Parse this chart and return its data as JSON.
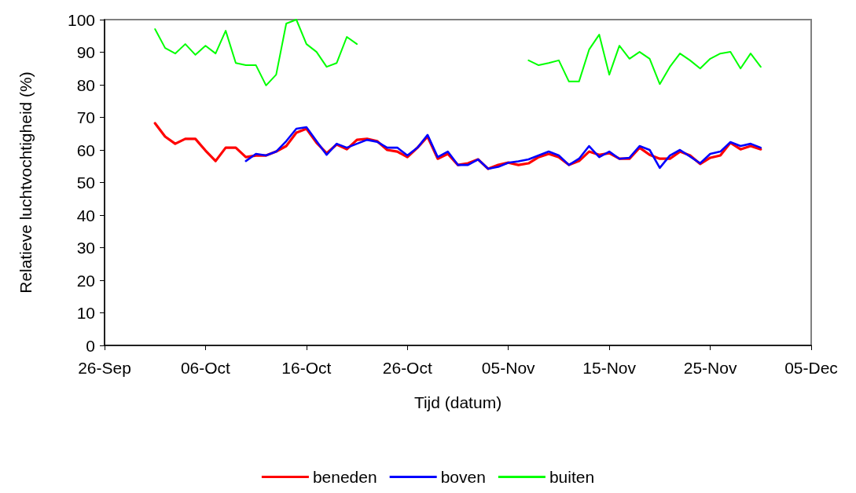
{
  "chart_data": {
    "type": "line",
    "xlabel": "Tijd (datum)",
    "ylabel": "Relatieve luchtvochtigheid (%)",
    "x": [
      "--10-01",
      "--10-02",
      "--10-03",
      "--10-04",
      "--10-05",
      "--10-06",
      "--10-07",
      "--10-08",
      "--10-09",
      "--10-10",
      "--10-11",
      "--10-12",
      "--10-13",
      "--10-14",
      "--10-15",
      "--10-16",
      "--10-17",
      "--10-18",
      "--10-19",
      "--10-20",
      "--10-21",
      "--10-22",
      "--10-23",
      "--10-24",
      "--10-25",
      "--10-26",
      "--10-27",
      "--10-28",
      "--10-29",
      "--10-30",
      "--10-31",
      "--11-01",
      "--11-02",
      "--11-03",
      "--11-04",
      "--11-05",
      "--11-06",
      "--11-07",
      "--11-08",
      "--11-09",
      "--11-10",
      "--11-11",
      "--11-12",
      "--11-13",
      "--11-14",
      "--11-15",
      "--11-16",
      "--11-17",
      "--11-18",
      "--11-19",
      "--11-20",
      "--11-21",
      "--11-22",
      "--11-23",
      "--11-24",
      "--11-25",
      "--11-26",
      "--11-27",
      "--11-28",
      "--11-29",
      "--11-30"
    ],
    "series": [
      {
        "name": "beneden",
        "color": "#ff0000",
        "values": [
          68.2,
          64.1,
          61.9,
          63.4,
          63.4,
          59.8,
          56.6,
          60.7,
          60.7,
          57.8,
          58.3,
          58.3,
          59.5,
          61.2,
          65.3,
          66.5,
          62.2,
          59,
          61.7,
          60.2,
          63.1,
          63.4,
          62.7,
          60,
          59.5,
          57.8,
          60.7,
          64.1,
          57.3,
          58.8,
          55.4,
          55.9,
          57.1,
          54.2,
          55.4,
          56.1,
          55.4,
          55.9,
          57.8,
          58.8,
          57.8,
          55.4,
          56.6,
          59.5,
          58.5,
          59,
          57.3,
          57.3,
          60.7,
          58.5,
          57.3,
          57.3,
          59.5,
          58.3,
          55.7,
          57.6,
          58.3,
          62.2,
          60.2,
          61.2,
          60.2
        ]
      },
      {
        "name": "boven",
        "color": "#0000ff",
        "values": [
          null,
          null,
          null,
          null,
          null,
          null,
          null,
          null,
          null,
          56.6,
          58.8,
          58.3,
          59.5,
          62.7,
          66.5,
          67,
          62.7,
          58.5,
          61.9,
          60.7,
          61.9,
          63.1,
          62.5,
          60.7,
          60.7,
          58.3,
          60.7,
          64.6,
          57.8,
          59.5,
          55.4,
          55.4,
          57.1,
          54.2,
          54.8,
          56.1,
          56.5,
          57.1,
          58.3,
          59.5,
          58.3,
          55.4,
          57.3,
          61.2,
          57.8,
          59.5,
          57.3,
          57.6,
          61.2,
          60,
          54.5,
          58.3,
          60,
          58,
          55.9,
          58.8,
          59.5,
          62.4,
          61.2,
          61.9,
          60.7
        ]
      },
      {
        "name": "buiten",
        "color": "#00ff00",
        "values": [
          97.1,
          91.3,
          89.6,
          92.5,
          89.2,
          92,
          89.6,
          96.6,
          86.7,
          86,
          86,
          79.8,
          83.1,
          98.8,
          100,
          92.5,
          90.1,
          85.5,
          86.7,
          94.7,
          92.5,
          null,
          null,
          null,
          null,
          null,
          null,
          null,
          null,
          null,
          null,
          null,
          null,
          null,
          null,
          null,
          null,
          87.5,
          86,
          86.7,
          87.5,
          81,
          81,
          90.8,
          95.4,
          83.1,
          92,
          88,
          90.1,
          88,
          80.2,
          85.5,
          89.6,
          87.5,
          85,
          88,
          89.6,
          90.1,
          85,
          89.6,
          85.5
        ]
      }
    ],
    "xlim": [
      "--09-26",
      "--12-05"
    ],
    "xticks": [
      {
        "value": "--09-26",
        "label": "26-Sep"
      },
      {
        "value": "--10-06",
        "label": "06-Oct"
      },
      {
        "value": "--10-16",
        "label": "16-Oct"
      },
      {
        "value": "--10-26",
        "label": "26-Oct"
      },
      {
        "value": "--11-05",
        "label": "05-Nov"
      },
      {
        "value": "--11-15",
        "label": "15-Nov"
      },
      {
        "value": "--11-25",
        "label": "25-Nov"
      },
      {
        "value": "--12-05",
        "label": "05-Dec"
      }
    ],
    "ylim": [
      0,
      100
    ],
    "yticks": [
      0,
      10,
      20,
      30,
      40,
      50,
      60,
      70,
      80,
      90,
      100
    ],
    "grid": false,
    "legend": "bottom",
    "marker": "none",
    "line_style": "solid"
  }
}
